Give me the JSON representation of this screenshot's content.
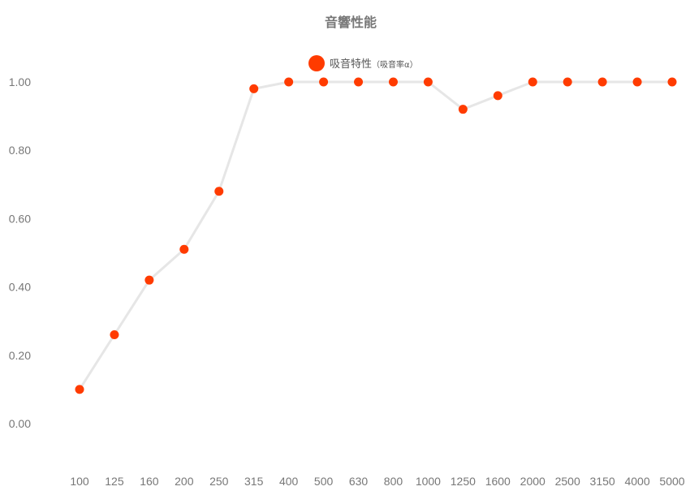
{
  "chart_data": {
    "type": "line",
    "title": "音響性能",
    "categories": [
      "100",
      "125",
      "160",
      "200",
      "250",
      "315",
      "400",
      "500",
      "630",
      "800",
      "1000",
      "1250",
      "1600",
      "2000",
      "2500",
      "3150",
      "4000",
      "5000"
    ],
    "series": [
      {
        "name": "吸音特性",
        "name_suffix": "（吸音率α）",
        "values": [
          0.1,
          0.26,
          0.42,
          0.51,
          0.68,
          0.98,
          1.0,
          1.0,
          1.0,
          1.0,
          1.0,
          0.92,
          0.96,
          1.0,
          1.0,
          1.0,
          1.0,
          1.0
        ]
      }
    ],
    "y_ticks": [
      "0.00",
      "0.20",
      "0.40",
      "0.60",
      "0.80",
      "1.00"
    ],
    "ylim": [
      -0.09,
      1.1
    ],
    "grid": false,
    "legend_position": "top-center",
    "colors": {
      "marker": "#ff3b00",
      "line": "#e6e6e6",
      "text": "#777777"
    }
  }
}
